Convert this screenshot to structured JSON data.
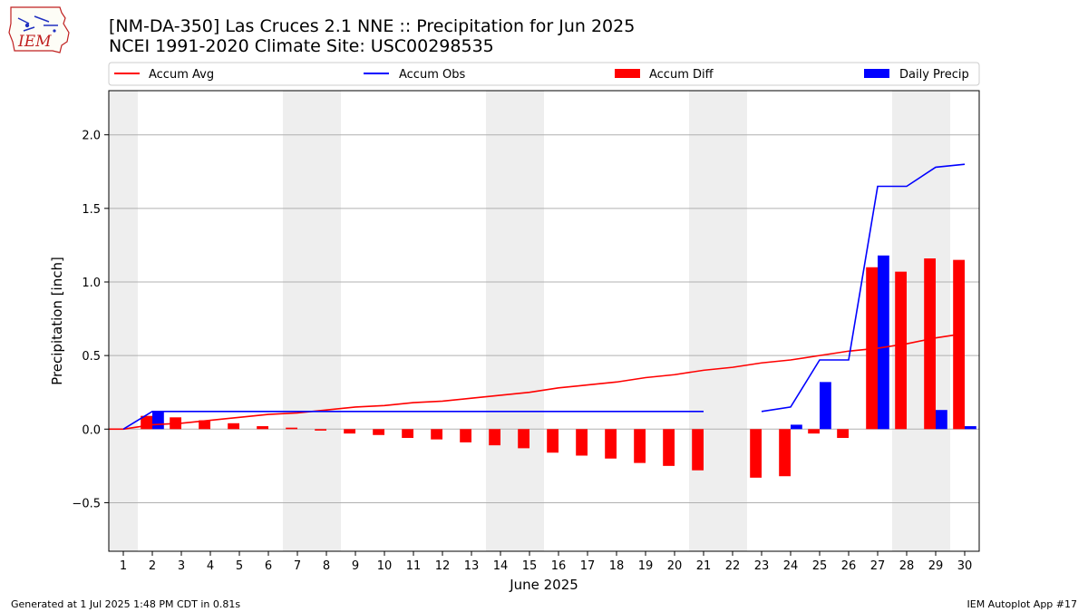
{
  "titles": {
    "line1": "[NM-DA-350] Las Cruces 2.1 NNE :: Precipitation for Jun 2025",
    "line2": "NCEI 1991-2020 Climate Site: USC00298535"
  },
  "footer": {
    "left": "Generated at 1 Jul 2025 1:48 PM CDT in 0.81s",
    "right": "IEM Autoplot App #17"
  },
  "logo": {
    "text": "IEM"
  },
  "colors": {
    "avg": "#ff0000",
    "obs": "#0000ff",
    "diff": "#ff0000",
    "daily": "#0000ff",
    "weekend": "#eeeeee",
    "grid": "#b0b0b0"
  },
  "chart_data": {
    "type": "bar",
    "xlabel": "June 2025",
    "ylabel": "Precipitation [inch]",
    "ylim": [
      -0.83,
      2.3
    ],
    "yticks": [
      "−0.5",
      "0.0",
      "0.5",
      "1.0",
      "1.5",
      "2.0"
    ],
    "ytick_values": [
      -0.5,
      0.0,
      0.5,
      1.0,
      1.5,
      2.0
    ],
    "days": [
      1,
      2,
      3,
      4,
      5,
      6,
      7,
      8,
      9,
      10,
      11,
      12,
      13,
      14,
      15,
      16,
      17,
      18,
      19,
      20,
      21,
      22,
      23,
      24,
      25,
      26,
      27,
      28,
      29,
      30
    ],
    "weekend_days": [
      1,
      7,
      8,
      14,
      15,
      21,
      22,
      28,
      29
    ],
    "grid": "horizontal",
    "legend": {
      "placement": "top",
      "labels": [
        "Accum Avg",
        "Accum Obs",
        "Accum Diff",
        "Daily Precip"
      ]
    },
    "series": [
      {
        "name": "Accum Avg",
        "type": "line",
        "values": [
          0.0,
          0.03,
          0.04,
          0.06,
          0.08,
          0.1,
          0.11,
          0.13,
          0.15,
          0.16,
          0.18,
          0.19,
          0.21,
          0.23,
          0.25,
          0.28,
          0.3,
          0.32,
          0.35,
          0.37,
          0.4,
          0.42,
          0.45,
          0.47,
          0.5,
          0.53,
          0.55,
          0.58,
          0.62,
          0.65
        ]
      },
      {
        "name": "Accum Obs",
        "type": "line",
        "values": [
          0.0,
          0.12,
          0.12,
          0.12,
          0.12,
          0.12,
          0.12,
          0.12,
          0.12,
          0.12,
          0.12,
          0.12,
          0.12,
          0.12,
          0.12,
          0.12,
          0.12,
          0.12,
          0.12,
          0.12,
          0.12,
          null,
          0.12,
          0.15,
          0.47,
          0.47,
          1.65,
          1.65,
          1.78,
          1.8
        ]
      },
      {
        "name": "Accum Diff",
        "type": "bar",
        "values": [
          0.0,
          0.09,
          0.08,
          0.06,
          0.04,
          0.02,
          0.01,
          -0.01,
          -0.03,
          -0.04,
          -0.06,
          -0.07,
          -0.09,
          -0.11,
          -0.13,
          -0.16,
          -0.18,
          -0.2,
          -0.23,
          -0.25,
          -0.28,
          null,
          -0.33,
          -0.32,
          -0.03,
          -0.06,
          1.1,
          1.07,
          1.16,
          1.15
        ]
      },
      {
        "name": "Daily Precip",
        "type": "bar",
        "values": [
          0,
          0.12,
          0,
          0,
          0,
          0,
          0,
          0,
          0,
          0,
          0,
          0,
          0,
          0,
          0,
          0,
          0,
          0,
          0,
          0,
          0,
          0,
          0,
          0.03,
          0.32,
          0,
          1.18,
          0,
          0.13,
          0.02
        ]
      }
    ]
  }
}
